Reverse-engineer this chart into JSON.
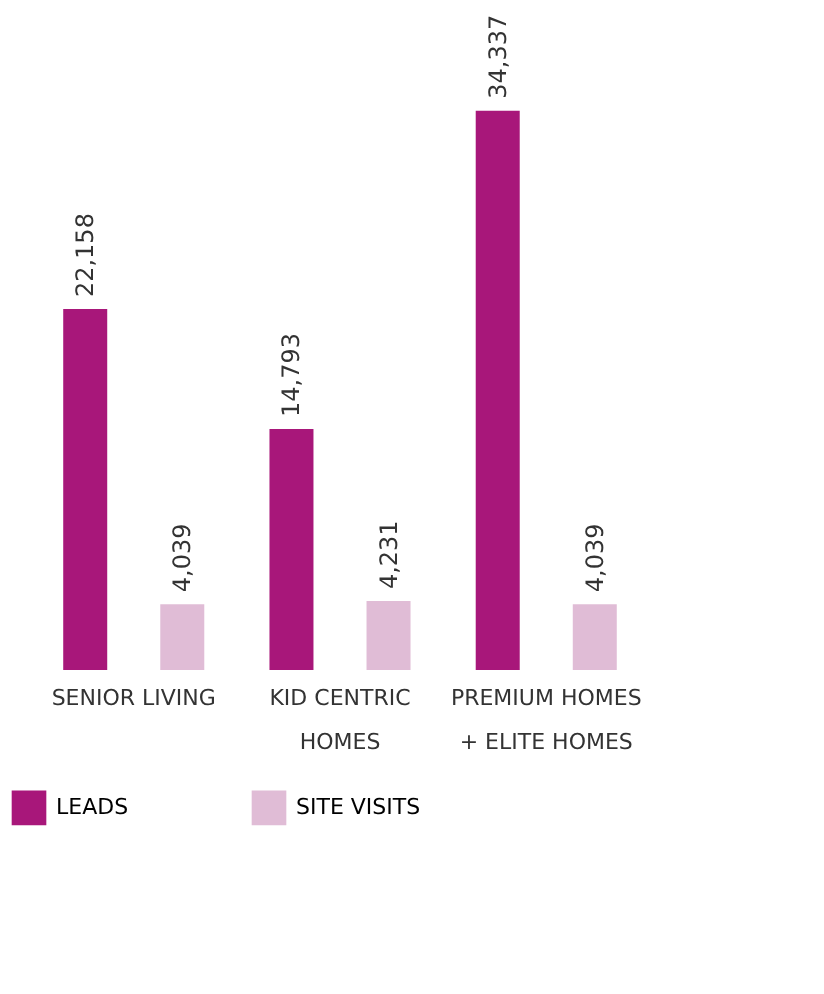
{
  "chart_data": {
    "type": "bar",
    "categories": [
      "SENIOR LIVING",
      "KID CENTRIC HOMES",
      "PREMIUM HOMES + ELITE HOMES"
    ],
    "series": [
      {
        "name": "LEADS",
        "color": "#a8177a",
        "values": [
          22158,
          14793,
          34337
        ],
        "value_labels": [
          "22,158",
          "14,793",
          "34,337"
        ]
      },
      {
        "name": "SITE VISITS",
        "color": "#e0bcd6",
        "values": [
          4039,
          4231,
          4039
        ],
        "value_labels": [
          "4,039",
          "4,231",
          "4,039"
        ]
      }
    ],
    "grid": false,
    "legend": "bottom",
    "tick_labels": "x"
  }
}
